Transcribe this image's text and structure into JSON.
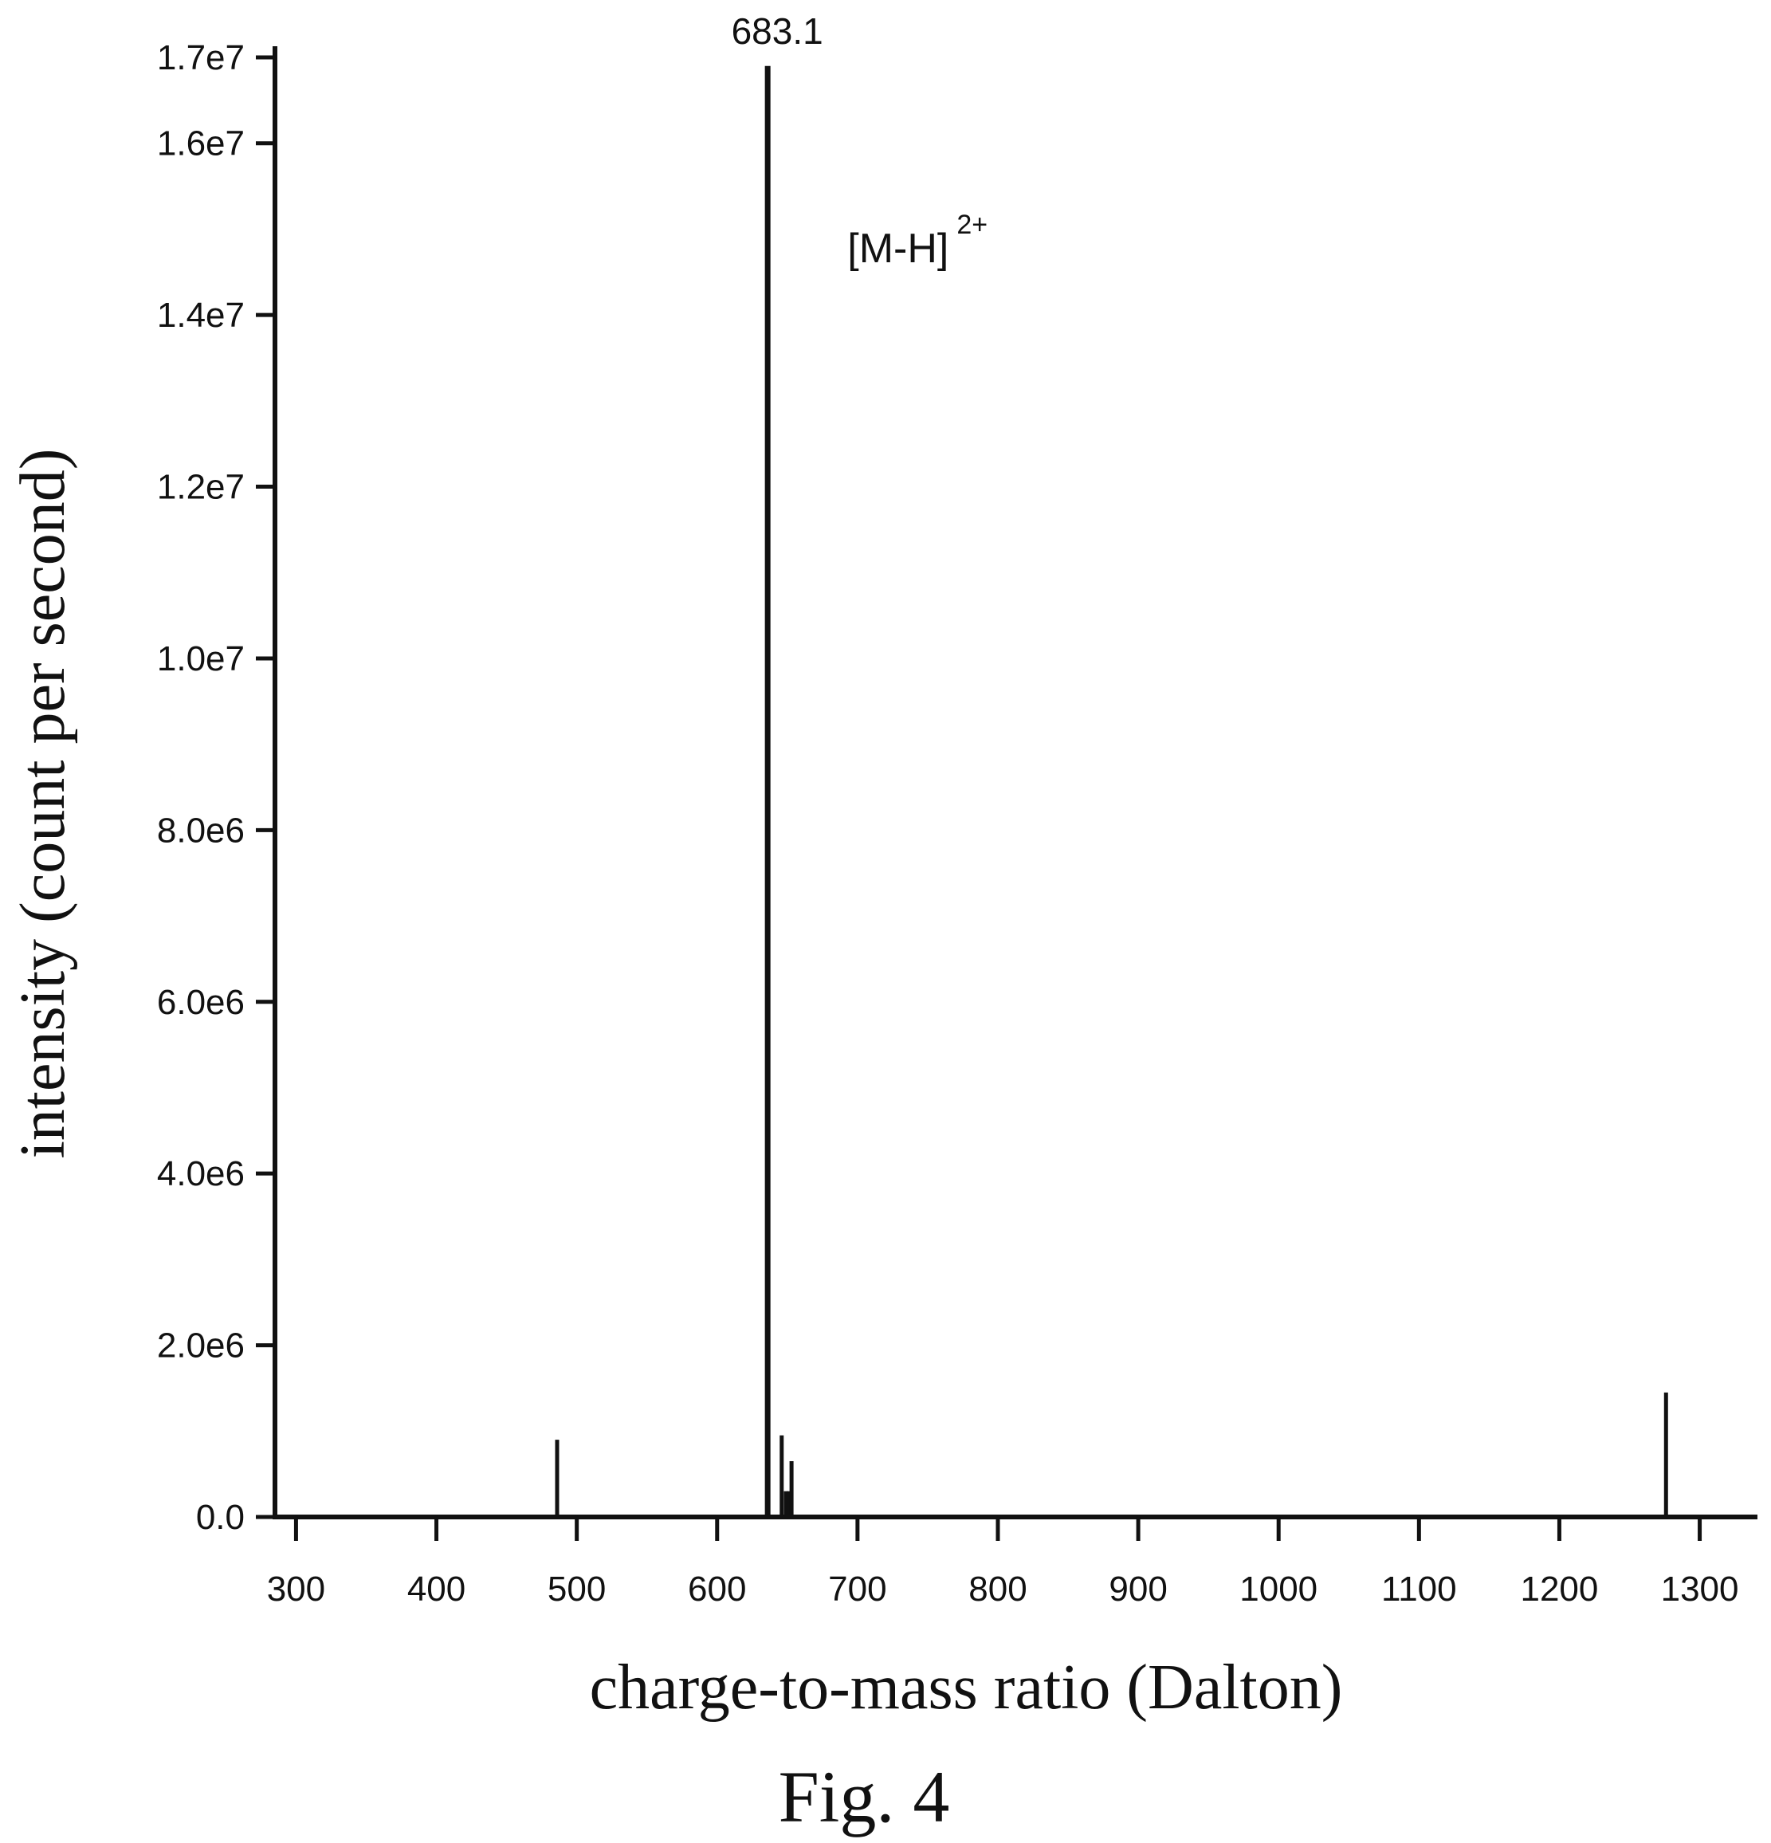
{
  "chart_data": {
    "type": "bar",
    "xlabel": "charge-to-mass ratio (Dalton)",
    "ylabel": "intensity (count per second)",
    "caption": "Fig. 4",
    "xlim": [
      285,
      1340
    ],
    "ylim": [
      0,
      17000000
    ],
    "x_ticks": [
      300,
      400,
      500,
      600,
      700,
      800,
      900,
      1000,
      1100,
      1200,
      1300
    ],
    "x_tick_labels": [
      "300",
      "400",
      "500",
      "600",
      "700",
      "800",
      "900",
      "1000",
      "1100",
      "1200",
      "1300"
    ],
    "y_ticks": [
      0,
      2000000,
      4000000,
      6000000,
      8000000,
      10000000,
      12000000,
      14000000,
      16000000,
      17000000
    ],
    "y_tick_labels": [
      "0.0",
      "2.0e6",
      "4.0e6",
      "6.0e6",
      "8.0e6",
      "1.0e7",
      "1.2e7",
      "1.4e7",
      "1.6e7",
      "1.7e7"
    ],
    "grid": false,
    "series": [
      {
        "peaks": [
          {
            "x": 486,
            "y": 900000
          },
          {
            "x": 636,
            "y": 16900000
          },
          {
            "x": 646,
            "y": 950000
          },
          {
            "x": 649,
            "y": 300000
          },
          {
            "x": 651,
            "y": 300000
          },
          {
            "x": 653,
            "y": 650000
          },
          {
            "x": 1276,
            "y": 1450000
          }
        ]
      }
    ],
    "annotations": [
      {
        "text": "683.1",
        "x": 636,
        "y": 16900000
      },
      {
        "text": "[M-H]",
        "superscript": "2+",
        "x": 690,
        "y": 14800000
      }
    ]
  }
}
